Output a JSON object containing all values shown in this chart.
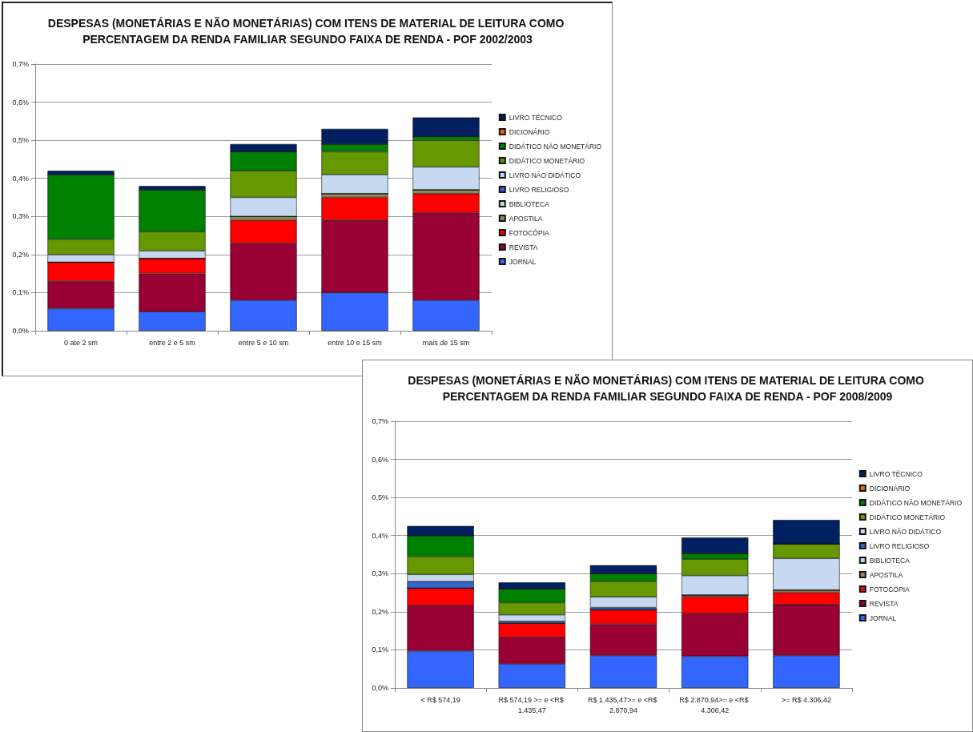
{
  "chart_data": [
    {
      "type": "bar",
      "stacked": true,
      "title": "DESPESAS (MONETÁRIAS E NÃO MONETÁRIAS) COM ITENS DE MATERIAL DE LEITURA COMO PERCENTAGEM DA RENDA FAMILIAR SEGUNDO FAIXA DE RENDA - POF 2002/2003",
      "categories": [
        "0 ate 2 sm",
        "entre 2 e 5 sm",
        "entre 5 e 10 sm",
        "entre 10 e 15 sm",
        "mais de 15 sm"
      ],
      "ylim": [
        0,
        0.7
      ],
      "yticks": [
        {
          "value": 0,
          "label": "0,0%"
        },
        {
          "value": 0.1,
          "label": "0,1%"
        },
        {
          "value": 0.2,
          "label": "0,2%"
        },
        {
          "value": 0.3,
          "label": "0,3%"
        },
        {
          "value": 0.4,
          "label": "0,4%"
        },
        {
          "value": 0.5,
          "label": "0,5%"
        },
        {
          "value": 0.6,
          "label": "0,6%"
        },
        {
          "value": 0.7,
          "label": "0,7%"
        }
      ],
      "grid": "y",
      "legend": "right",
      "series": [
        {
          "name": "JORNAL",
          "color": "#3366ff",
          "values": [
            0.058,
            0.05,
            0.08,
            0.1,
            0.08
          ]
        },
        {
          "name": "REVISTA",
          "color": "#990033",
          "values": [
            0.072,
            0.1,
            0.15,
            0.19,
            0.23
          ]
        },
        {
          "name": "FOTOCÓPIA",
          "color": "#ff0000",
          "values": [
            0.05,
            0.04,
            0.06,
            0.06,
            0.05
          ]
        },
        {
          "name": "APOSTILA",
          "color": "#948a54",
          "values": [
            0,
            0,
            0.01,
            0.01,
            0.01
          ]
        },
        {
          "name": "BIBLIOTECA",
          "color": "#b7dee8",
          "values": [
            0,
            0,
            0,
            0,
            0
          ]
        },
        {
          "name": "LIVRO RELIGIOSO",
          "color": "#3366cc",
          "values": [
            0,
            0,
            0,
            0,
            0
          ]
        },
        {
          "name": "LIVRO NÃO DIDÁTICO",
          "color": "#c6d9f1",
          "values": [
            0.02,
            0.02,
            0.05,
            0.05,
            0.06
          ]
        },
        {
          "name": "DIDÁTICO MONETÁRIO",
          "color": "#669900",
          "values": [
            0.04,
            0.05,
            0.07,
            0.06,
            0.07
          ]
        },
        {
          "name": "DIDÁTICO NÃO MONETÁRIO",
          "color": "#008000",
          "values": [
            0.17,
            0.11,
            0.05,
            0.02,
            0.01
          ]
        },
        {
          "name": "DICIONÁRIO",
          "color": "#e46c0a",
          "values": [
            0,
            0,
            0,
            0,
            0
          ]
        },
        {
          "name": "LIVRO TÉCNICO",
          "color": "#002060",
          "values": [
            0.01,
            0.01,
            0.02,
            0.04,
            0.05
          ]
        }
      ]
    },
    {
      "type": "bar",
      "stacked": true,
      "title": "DESPESAS (MONETÁRIAS E NÃO MONETÁRIAS) COM ITENS DE MATERIAL DE LEITURA COMO PERCENTAGEM DA RENDA FAMILIAR SEGUNDO FAIXA DE RENDA - POF 2008/2009",
      "categories": [
        "< R$ 574,19",
        "R$ 574,19 >= e <R$ 1.435,47",
        "R$ 1.435,47>= e <R$ 2.870,94",
        "R$ 2.870,94>= e <R$ 4.306,42",
        ">= R$ 4.306,42"
      ],
      "ylim": [
        0,
        0.7
      ],
      "yticks": [
        {
          "value": 0,
          "label": "0,0%"
        },
        {
          "value": 0.1,
          "label": "0,1%"
        },
        {
          "value": 0.2,
          "label": "0,2%"
        },
        {
          "value": 0.3,
          "label": "0,3%"
        },
        {
          "value": 0.4,
          "label": "0,4%"
        },
        {
          "value": 0.5,
          "label": "0,5%"
        },
        {
          "value": 0.6,
          "label": "0,6%"
        },
        {
          "value": 0.7,
          "label": "0,7%"
        }
      ],
      "grid": "y",
      "legend": "right",
      "series": [
        {
          "name": "JORNAL",
          "color": "#3366ff",
          "values": [
            0.097,
            0.063,
            0.085,
            0.083,
            0.085
          ]
        },
        {
          "name": "REVISTA",
          "color": "#990033",
          "values": [
            0.119,
            0.07,
            0.083,
            0.112,
            0.134
          ]
        },
        {
          "name": "FOTOCÓPIA",
          "color": "#ff0000",
          "values": [
            0.046,
            0.037,
            0.037,
            0.045,
            0.032
          ]
        },
        {
          "name": "APOSTILA",
          "color": "#948a54",
          "values": [
            0,
            null,
            0,
            0.004,
            0.006
          ]
        },
        {
          "name": "BIBLIOTECA",
          "color": "#b7dee8",
          "values": [
            0,
            0,
            0,
            0,
            0
          ]
        },
        {
          "name": "LIVRO RELIGIOSO",
          "color": "#3366cc",
          "values": [
            0.017,
            0.005,
            0.006,
            0,
            0
          ]
        },
        {
          "name": "LIVRO NÃO DIDÁTICO",
          "color": "#c6d9f1",
          "values": [
            0.019,
            0.017,
            0.028,
            0.051,
            0.083
          ]
        },
        {
          "name": "DIDÁTICO MONETÁRIO",
          "color": "#669900",
          "values": [
            0.047,
            0.032,
            0.041,
            0.043,
            0.038
          ]
        },
        {
          "name": "DIDÁTICO NÃO MONETÁRIO",
          "color": "#008000",
          "values": [
            0.055,
            0.036,
            0.02,
            0.015,
            0
          ]
        },
        {
          "name": "DICIONÁRIO",
          "color": "#e46c0a",
          "values": [
            0,
            0,
            0,
            0,
            0
          ]
        },
        {
          "name": "LIVRO TÉCNICO",
          "color": "#002060",
          "values": [
            0.025,
            0.017,
            0.022,
            0.042,
            0.063
          ]
        }
      ]
    }
  ]
}
